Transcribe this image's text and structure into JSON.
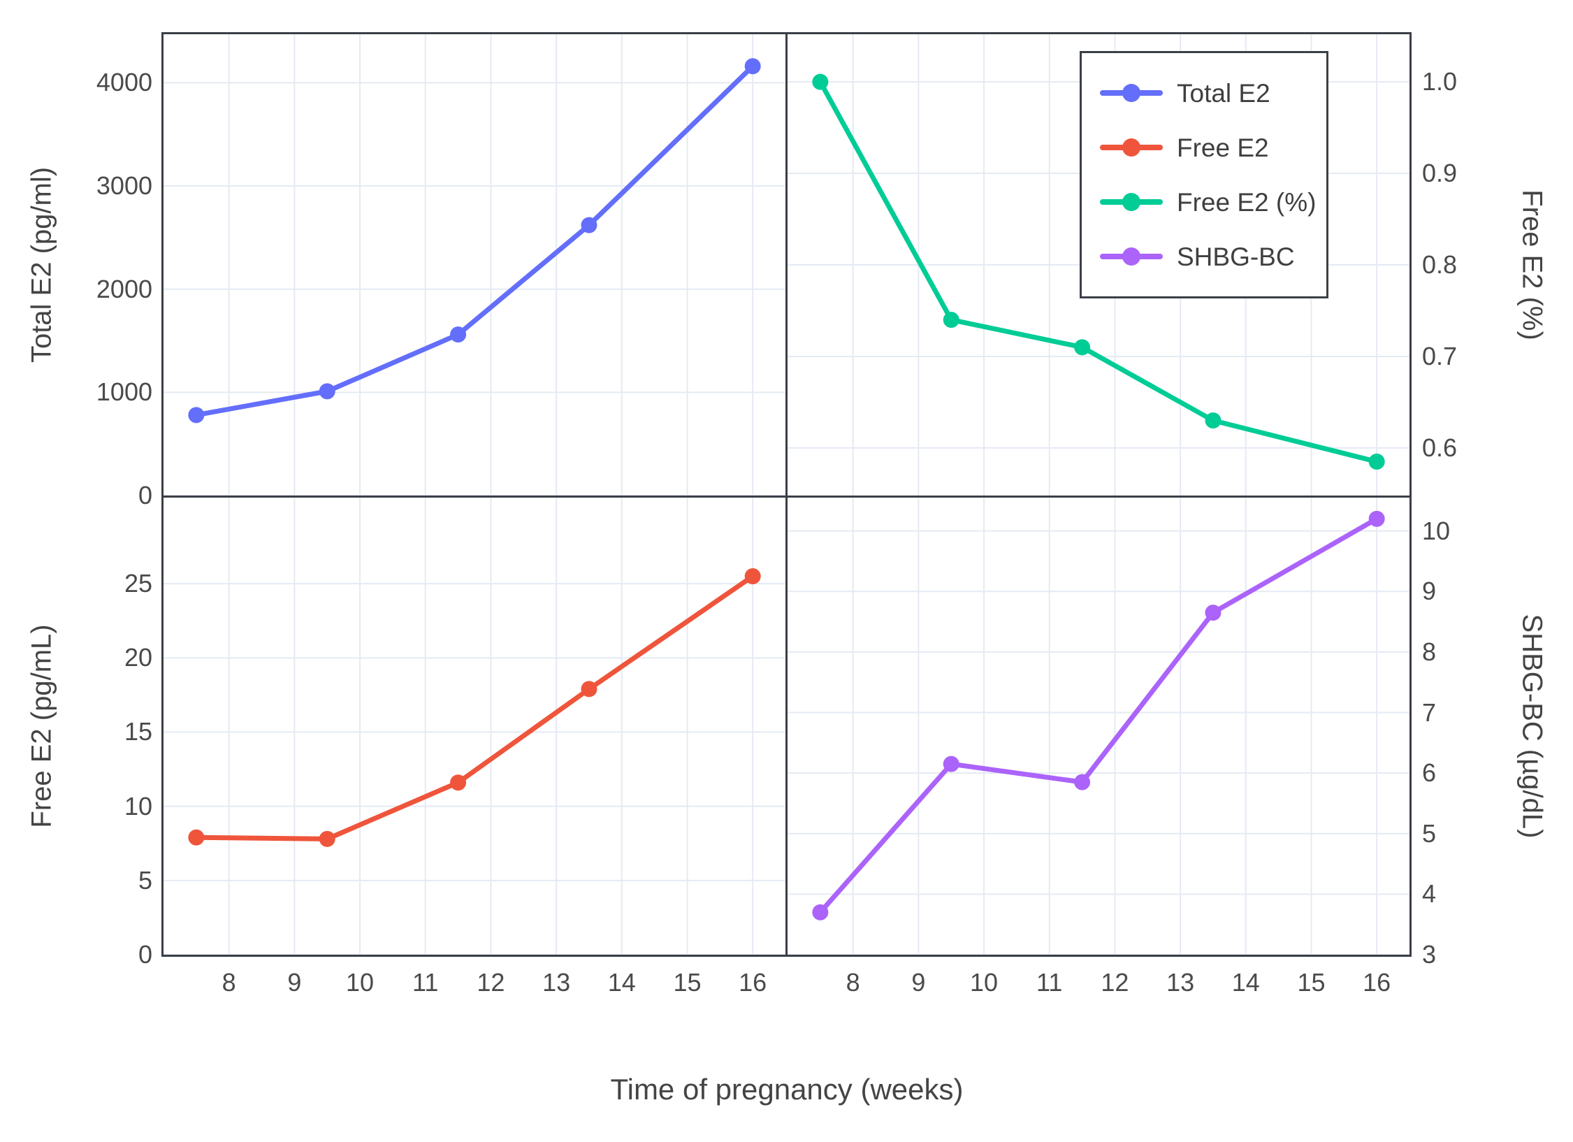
{
  "layout": {
    "xlabel": "Time of pregnancy (weeks)",
    "x_range": [
      7,
      16.5
    ],
    "x_ticks": [
      8,
      9,
      10,
      11,
      12,
      13,
      14,
      15,
      16
    ],
    "grid": true,
    "background": "#ffffff",
    "frame_color": "#3b3f46",
    "grid_color": "#e5eaf3",
    "text_color": "#444444",
    "legend_position": "top-right-panel",
    "legend": [
      {
        "label": "Total E2",
        "color": "#636EFA"
      },
      {
        "label": "Free E2",
        "color": "#EF553B"
      },
      {
        "label": "Free E2 (%)",
        "color": "#00CC96"
      },
      {
        "label": "SHBG-BC",
        "color": "#AB63FA"
      }
    ]
  },
  "chart_data": [
    {
      "type": "line",
      "position": "top-left",
      "series_name": "Total E2",
      "ylabel": "Total E2 (pg/ml)",
      "color": "#636EFA",
      "x": [
        7.5,
        9.5,
        11.5,
        13.5,
        16
      ],
      "values": [
        780,
        1010,
        1560,
        2620,
        4160
      ],
      "y_range": [
        0,
        4470
      ],
      "y_ticks": [
        {
          "v": 0,
          "label": "0"
        },
        {
          "v": 1000,
          "label": "1000"
        },
        {
          "v": 2000,
          "label": "2000"
        },
        {
          "v": 3000,
          "label": "3000"
        },
        {
          "v": 4000,
          "label": "4000"
        }
      ],
      "tick_side": "left",
      "show_x_tick_labels": false
    },
    {
      "type": "line",
      "position": "top-right",
      "series_name": "Free E2 (%)",
      "ylabel": "Free E2 (%)",
      "color": "#00CC96",
      "x": [
        7.5,
        9.5,
        11.5,
        13.5,
        16
      ],
      "values": [
        1.0,
        0.74,
        0.71,
        0.63,
        0.585
      ],
      "y_range": [
        0.548,
        1.052
      ],
      "y_ticks": [
        {
          "v": 0.6,
          "label": "0.6"
        },
        {
          "v": 0.7,
          "label": "0.7"
        },
        {
          "v": 0.8,
          "label": "0.8"
        },
        {
          "v": 0.9,
          "label": "0.9"
        },
        {
          "v": 1.0,
          "label": "1.0"
        }
      ],
      "tick_side": "right",
      "show_x_tick_labels": false
    },
    {
      "type": "line",
      "position": "bottom-left",
      "series_name": "Free E2",
      "ylabel": "Free E2 (pg/mL)",
      "color": "#EF553B",
      "x": [
        7.5,
        9.5,
        11.5,
        13.5,
        16
      ],
      "values": [
        7.9,
        7.8,
        11.6,
        17.9,
        25.5
      ],
      "y_range": [
        0,
        30.8
      ],
      "y_ticks": [
        {
          "v": 0,
          "label": "0"
        },
        {
          "v": 5,
          "label": "5"
        },
        {
          "v": 10,
          "label": "10"
        },
        {
          "v": 15,
          "label": "15"
        },
        {
          "v": 20,
          "label": "20"
        },
        {
          "v": 25,
          "label": "25"
        }
      ],
      "tick_side": "left",
      "show_x_tick_labels": true
    },
    {
      "type": "line",
      "position": "bottom-right",
      "series_name": "SHBG-BC",
      "ylabel": "SHBG-BC (µg/dL)",
      "color": "#AB63FA",
      "x": [
        7.5,
        9.5,
        11.5,
        13.5,
        16
      ],
      "values": [
        3.7,
        6.15,
        5.85,
        8.65,
        10.2
      ],
      "y_range": [
        3,
        10.55
      ],
      "y_ticks": [
        {
          "v": 3,
          "label": "3"
        },
        {
          "v": 4,
          "label": "4"
        },
        {
          "v": 5,
          "label": "5"
        },
        {
          "v": 6,
          "label": "6"
        },
        {
          "v": 7,
          "label": "7"
        },
        {
          "v": 8,
          "label": "8"
        },
        {
          "v": 9,
          "label": "9"
        },
        {
          "v": 10,
          "label": "10"
        }
      ],
      "tick_side": "right",
      "show_x_tick_labels": true
    }
  ]
}
